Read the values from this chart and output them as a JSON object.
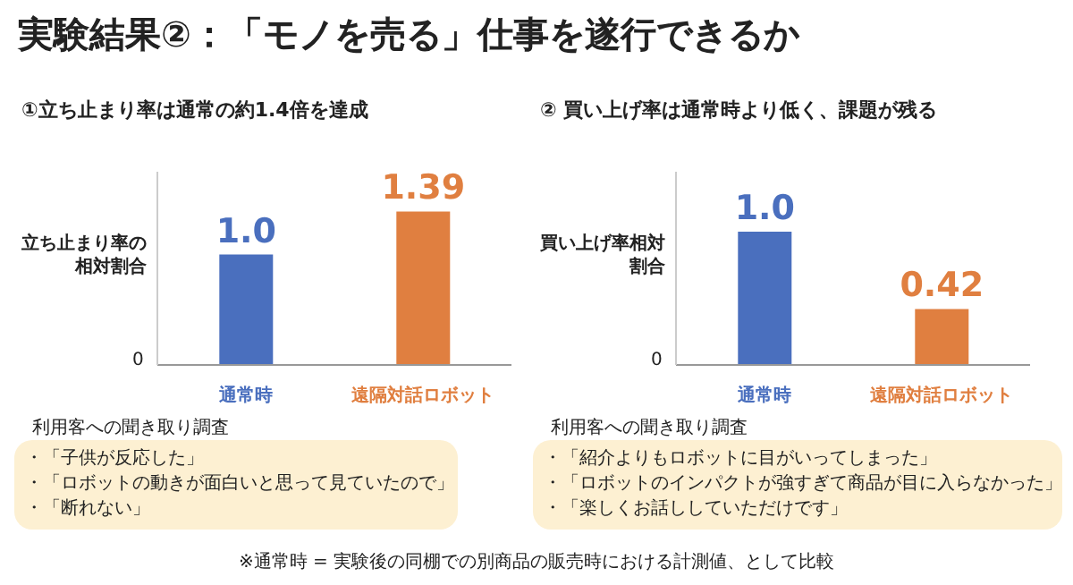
{
  "chart_data": [
    {
      "type": "bar",
      "title": "①立ち止まり率は通常の約1.4倍を達成",
      "ylabel": "立ち止まり率の相対割合",
      "categories": [
        "通常時",
        "遠隔対話ロボット"
      ],
      "values": [
        1.0,
        1.39
      ],
      "colors": [
        "#4a6fbe",
        "#e07f40"
      ],
      "value_labels": [
        "1.0",
        "1.39"
      ],
      "ylim": [
        0,
        1.75
      ],
      "annotations": [
        "実験結果②：「モノを売る」仕事を遂行できるか",
        "0",
        "利用客への聞き取り調査",
        "・「子供が反応した」",
        "・「ロボットの動きが面白いと思って見ていたので」",
        "・「断れない」"
      ]
    },
    {
      "type": "bar",
      "title": "② 買い上げ率は通常時より低く、課題が残る",
      "ylabel": "買い上げ率相対割合",
      "categories": [
        "通常時",
        "遠隔対話ロボット"
      ],
      "values": [
        1.0,
        0.42
      ],
      "colors": [
        "#4a6fbe",
        "#e07f40"
      ],
      "value_labels": [
        "1.0",
        "0.42"
      ],
      "ylim": [
        0,
        1.45
      ],
      "annotations": [
        "0",
        "利用客への聞き取り調査",
        "・「紹介よりもロボットに目がいってしまった」",
        "・「ロボットのインパクトが強すぎて商品が目に入らなかった」",
        "・「楽しくお話ししていただけです」",
        "※通常時 = 実験後の同棚での別商品の販売時における計測値、として比較"
      ]
    }
  ]
}
